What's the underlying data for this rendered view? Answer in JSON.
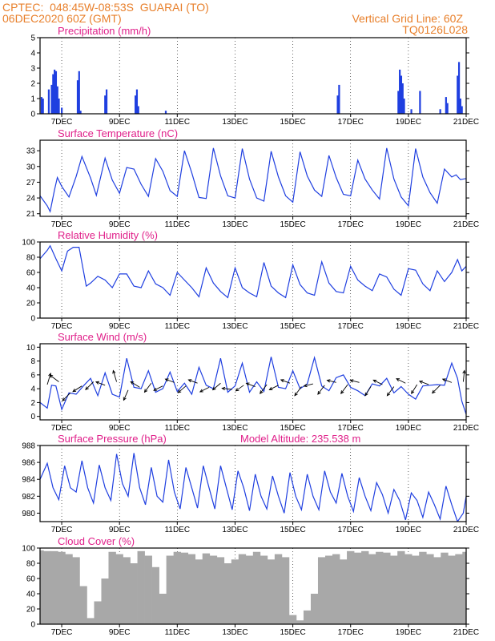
{
  "header": {
    "source": "CPTEC:",
    "coords": "048:45W-08:53S",
    "location": "GUARAI (TO)",
    "run": "06DEC2020 60Z (GMT)",
    "grid_note": "Vertical Grid Line: 60Z",
    "model": "TQ0126L028"
  },
  "colors": {
    "line": "#1f3fe0",
    "title": "#e0208a",
    "header": "#e87f2a",
    "cloud": "#a8a8a8",
    "wind_arrow": "#000000"
  },
  "x_axis": {
    "start": 6.25,
    "end": 21,
    "ticks": [
      7,
      9,
      11,
      13,
      15,
      17,
      19,
      21
    ],
    "tick_labels": [
      "7DEC",
      "9DEC",
      "11DEC",
      "13DEC",
      "15DEC",
      "17DEC",
      "19DEC",
      "21DEC"
    ]
  },
  "chart_data": [
    {
      "type": "bar",
      "title": "Precipitation (mm/h)",
      "ylim": [
        0,
        5
      ],
      "yticks": [
        0,
        1,
        2,
        3,
        4,
        5
      ],
      "x": [
        6.3,
        6.35,
        6.55,
        6.65,
        6.7,
        6.75,
        6.8,
        6.85,
        6.9,
        7.0,
        7.55,
        7.6,
        7.65,
        8.5,
        8.55,
        9.55,
        9.6,
        9.65,
        10.6,
        16.55,
        16.6,
        18.65,
        18.7,
        18.75,
        18.8,
        18.85,
        19.1,
        19.4,
        20.1,
        20.3,
        20.35,
        20.7,
        20.75,
        20.8,
        20.85
      ],
      "values": [
        1.1,
        1.0,
        1.6,
        1.9,
        2.6,
        2.9,
        2.8,
        1.8,
        1.0,
        0.4,
        2.2,
        2.8,
        0.2,
        1.2,
        1.6,
        1.2,
        1.6,
        0.5,
        0.2,
        1.2,
        1.9,
        1.5,
        2.9,
        2.5,
        2.0,
        1.0,
        0.3,
        1.5,
        0.3,
        1.1,
        0.7,
        2.5,
        3.4,
        1.0,
        0.5
      ]
    },
    {
      "type": "line",
      "title": "Surface Temperature (nC)",
      "ylim": [
        20.5,
        35
      ],
      "yticks": [
        21,
        24,
        27,
        30,
        33
      ],
      "x": [
        6.25,
        6.5,
        6.6,
        6.75,
        6.85,
        7.0,
        7.25,
        7.5,
        7.7,
        8.0,
        8.2,
        8.5,
        8.75,
        9.0,
        9.25,
        9.5,
        9.75,
        10.0,
        10.25,
        10.5,
        10.75,
        11.0,
        11.25,
        11.5,
        11.75,
        12.0,
        12.25,
        12.5,
        12.75,
        13.0,
        13.25,
        13.5,
        13.75,
        14.0,
        14.25,
        14.5,
        14.75,
        15.0,
        15.25,
        15.5,
        15.75,
        16.0,
        16.25,
        16.5,
        16.75,
        17.0,
        17.25,
        17.5,
        17.75,
        18.0,
        18.25,
        18.5,
        18.75,
        19.0,
        19.25,
        19.5,
        19.75,
        20.0,
        20.25,
        20.5,
        20.65,
        20.8,
        21.0
      ],
      "values": [
        24.4,
        22.5,
        21.4,
        25.5,
        27.9,
        26.2,
        24.2,
        28.1,
        31.9,
        27.8,
        24.5,
        31.6,
        27.4,
        24.9,
        29.8,
        29.5,
        26.6,
        24.3,
        31.5,
        29.1,
        25.4,
        24.3,
        33.0,
        28.8,
        24.1,
        23.9,
        33.5,
        28.2,
        24.4,
        24.0,
        33.4,
        27.6,
        24.0,
        23.4,
        32.9,
        28.0,
        24.4,
        23.2,
        32.8,
        28.2,
        25.5,
        24.3,
        32.1,
        27.9,
        24.7,
        24.4,
        31.2,
        27.6,
        25.5,
        23.8,
        33.5,
        27.6,
        24.2,
        22.5,
        33.4,
        28.0,
        25.0,
        23.0,
        29.5,
        28.0,
        28.4,
        27.5,
        27.7
      ]
    },
    {
      "type": "line",
      "title": "Relative Humidity (%)",
      "ylim": [
        0,
        100
      ],
      "yticks": [
        0,
        20,
        40,
        60,
        80,
        100
      ],
      "x": [
        6.25,
        6.5,
        6.6,
        6.8,
        7.0,
        7.2,
        7.4,
        7.6,
        7.85,
        8.0,
        8.25,
        8.5,
        8.75,
        9.0,
        9.25,
        9.5,
        9.75,
        10.0,
        10.25,
        10.5,
        10.75,
        11.0,
        11.25,
        11.5,
        11.75,
        12.0,
        12.25,
        12.5,
        12.75,
        13.0,
        13.25,
        13.5,
        13.75,
        14.0,
        14.25,
        14.5,
        14.75,
        15.0,
        15.25,
        15.5,
        15.75,
        16.0,
        16.25,
        16.5,
        16.75,
        17.0,
        17.25,
        17.5,
        17.75,
        18.0,
        18.25,
        18.5,
        18.75,
        19.0,
        19.25,
        19.5,
        19.75,
        20.0,
        20.25,
        20.5,
        20.7,
        20.85,
        21.0
      ],
      "values": [
        78,
        89,
        95,
        78,
        62,
        88,
        93,
        93,
        42,
        46,
        55,
        50,
        40,
        58,
        58,
        42,
        40,
        62,
        45,
        40,
        30,
        60,
        50,
        40,
        28,
        66,
        46,
        35,
        27,
        66,
        40,
        33,
        28,
        73,
        42,
        33,
        27,
        70,
        44,
        33,
        30,
        74,
        46,
        35,
        33,
        68,
        50,
        42,
        36,
        58,
        54,
        38,
        30,
        65,
        63,
        45,
        36,
        62,
        48,
        60,
        77,
        62,
        68
      ]
    },
    {
      "type": "line",
      "title": "Surface Wind (m/s)",
      "ylim": [
        -0.5,
        10.5
      ],
      "yticks": [
        0,
        2,
        4,
        6,
        8,
        10
      ],
      "x": [
        6.25,
        6.5,
        6.65,
        6.8,
        7.0,
        7.25,
        7.5,
        7.75,
        8.0,
        8.25,
        8.5,
        8.75,
        9.0,
        9.25,
        9.5,
        9.75,
        10.0,
        10.25,
        10.5,
        10.75,
        11.0,
        11.25,
        11.5,
        11.75,
        12.0,
        12.25,
        12.5,
        12.75,
        13.0,
        13.25,
        13.5,
        13.75,
        14.0,
        14.25,
        14.5,
        14.75,
        15.0,
        15.25,
        15.5,
        15.75,
        16.0,
        16.25,
        16.5,
        16.75,
        17.0,
        17.25,
        17.5,
        17.75,
        18.0,
        18.25,
        18.5,
        18.75,
        19.0,
        19.25,
        19.5,
        19.75,
        20.0,
        20.25,
        20.5,
        20.7,
        20.85,
        21.0
      ],
      "values": [
        2.0,
        1.2,
        4.5,
        4.4,
        1.0,
        3.4,
        3.2,
        4.4,
        5.5,
        3.0,
        6.3,
        3.2,
        2.8,
        8.4,
        4.2,
        4.0,
        6.6,
        3.5,
        4.0,
        6.4,
        3.6,
        4.8,
        3.2,
        7.1,
        4.5,
        4.0,
        8.4,
        3.5,
        4.4,
        7.7,
        3.5,
        5.0,
        3.6,
        8.6,
        4.2,
        4.0,
        6.6,
        4.0,
        4.7,
        8.5,
        4.4,
        3.7,
        5.6,
        6.0,
        4.2,
        3.7,
        3.0,
        4.7,
        4.4,
        5.5,
        3.4,
        4.3,
        3.2,
        2.5,
        4.4,
        4.5,
        4.6,
        4.5,
        7.7,
        5.5,
        2.2,
        0.3
      ],
      "arrows": [
        {
          "x": 6.5,
          "y": 4.6,
          "u": 0.3,
          "v": 1.0
        },
        {
          "x": 6.9,
          "y": 5.0,
          "u": -0.8,
          "v": 0.6
        },
        {
          "x": 7.3,
          "y": 3.4,
          "u": -0.7,
          "v": -0.7
        },
        {
          "x": 7.7,
          "y": 4.4,
          "u": -0.8,
          "v": -0.5
        },
        {
          "x": 8.1,
          "y": 5.0,
          "u": -0.7,
          "v": -0.7
        },
        {
          "x": 8.5,
          "y": 4.5,
          "u": -0.8,
          "v": 0.3
        },
        {
          "x": 8.9,
          "y": 5.0,
          "u": -0.3,
          "v": 1.0
        },
        {
          "x": 9.3,
          "y": 3.8,
          "u": -0.4,
          "v": -0.9
        },
        {
          "x": 9.7,
          "y": 4.2,
          "u": -0.8,
          "v": 0.5
        },
        {
          "x": 10.1,
          "y": 4.8,
          "u": -0.6,
          "v": -0.8
        },
        {
          "x": 10.5,
          "y": 4.4,
          "u": -0.8,
          "v": -0.4
        },
        {
          "x": 10.9,
          "y": 4.9,
          "u": -0.8,
          "v": 0.3
        },
        {
          "x": 11.3,
          "y": 4.4,
          "u": -0.7,
          "v": -0.6
        },
        {
          "x": 11.7,
          "y": 4.8,
          "u": -0.8,
          "v": 0.3
        },
        {
          "x": 12.1,
          "y": 4.2,
          "u": -0.8,
          "v": -0.4
        },
        {
          "x": 12.5,
          "y": 4.8,
          "u": -0.7,
          "v": -0.6
        },
        {
          "x": 12.9,
          "y": 3.9,
          "u": -0.9,
          "v": 0.1
        },
        {
          "x": 13.3,
          "y": 4.5,
          "u": -0.7,
          "v": -0.5
        },
        {
          "x": 13.7,
          "y": 4.3,
          "u": -0.8,
          "v": 0.3
        },
        {
          "x": 14.1,
          "y": 4.6,
          "u": -0.6,
          "v": -0.8
        },
        {
          "x": 14.5,
          "y": 4.5,
          "u": -0.8,
          "v": -0.4
        },
        {
          "x": 14.9,
          "y": 4.8,
          "u": -0.8,
          "v": 0.3
        },
        {
          "x": 15.3,
          "y": 4.3,
          "u": -0.6,
          "v": -0.8
        },
        {
          "x": 15.7,
          "y": 4.7,
          "u": -0.8,
          "v": -0.2
        },
        {
          "x": 16.1,
          "y": 4.5,
          "u": -0.6,
          "v": -0.8
        },
        {
          "x": 16.5,
          "y": 4.9,
          "u": -0.8,
          "v": 0.2
        },
        {
          "x": 16.9,
          "y": 4.6,
          "u": -0.6,
          "v": -0.8
        },
        {
          "x": 17.3,
          "y": 4.9,
          "u": -0.8,
          "v": 0.2
        },
        {
          "x": 17.7,
          "y": 4.3,
          "u": -0.5,
          "v": -0.8
        },
        {
          "x": 18.1,
          "y": 4.6,
          "u": -0.8,
          "v": 0.4
        },
        {
          "x": 18.5,
          "y": 4.3,
          "u": -0.6,
          "v": -0.8
        },
        {
          "x": 18.9,
          "y": 4.8,
          "u": -0.8,
          "v": 0.4
        },
        {
          "x": 19.3,
          "y": 4.6,
          "u": -0.5,
          "v": -0.8
        },
        {
          "x": 19.7,
          "y": 4.6,
          "u": -0.8,
          "v": 0.3
        },
        {
          "x": 20.1,
          "y": 4.5,
          "u": -0.7,
          "v": -0.7
        },
        {
          "x": 20.5,
          "y": 4.9,
          "u": -0.8,
          "v": 0.3
        },
        {
          "x": 20.9,
          "y": 5.0,
          "u": 0.1,
          "v": 1.0
        }
      ]
    },
    {
      "type": "line",
      "title": "Surface Pressure (hPa)",
      "subtitle": "Model Altitude: 235.538 m",
      "ylim": [
        979,
        988
      ],
      "yticks": [
        980,
        982,
        984,
        986,
        988
      ],
      "x": [
        6.25,
        6.5,
        6.7,
        6.9,
        7.1,
        7.3,
        7.5,
        7.7,
        7.9,
        8.1,
        8.3,
        8.5,
        8.7,
        8.9,
        9.1,
        9.3,
        9.5,
        9.7,
        9.9,
        10.1,
        10.3,
        10.5,
        10.7,
        10.9,
        11.1,
        11.3,
        11.5,
        11.7,
        11.9,
        12.1,
        12.3,
        12.5,
        12.7,
        12.9,
        13.1,
        13.3,
        13.5,
        13.7,
        13.9,
        14.1,
        14.3,
        14.5,
        14.7,
        14.9,
        15.1,
        15.3,
        15.5,
        15.7,
        15.9,
        16.1,
        16.3,
        16.5,
        16.7,
        16.9,
        17.1,
        17.3,
        17.5,
        17.7,
        17.9,
        18.1,
        18.3,
        18.5,
        18.7,
        18.9,
        19.1,
        19.3,
        19.5,
        19.7,
        19.9,
        20.1,
        20.3,
        20.5,
        20.7,
        20.9,
        21.0
      ],
      "values": [
        984.0,
        985.9,
        983.0,
        981.6,
        985.6,
        983.0,
        982.5,
        986.2,
        983.0,
        981.2,
        985.7,
        983.0,
        981.5,
        987.0,
        983.5,
        982.0,
        987.1,
        983.0,
        981.0,
        985.4,
        982.0,
        981.3,
        986.3,
        982.5,
        980.5,
        985.4,
        983.0,
        980.6,
        985.6,
        983.0,
        980.5,
        985.6,
        983.0,
        980.4,
        985.0,
        983.0,
        980.3,
        984.6,
        982.0,
        980.5,
        984.4,
        982.0,
        980.0,
        984.8,
        982.0,
        980.4,
        984.6,
        982.0,
        980.4,
        985.0,
        982.5,
        981.2,
        984.7,
        982.0,
        980.2,
        984.2,
        982.0,
        980.3,
        983.6,
        982.2,
        980.0,
        982.8,
        981.5,
        979.2,
        982.4,
        981.5,
        979.5,
        982.5,
        981.0,
        979.3,
        983.2,
        981.0,
        979.0,
        980.0,
        982.0
      ]
    },
    {
      "type": "bar",
      "title": "Cloud Cover (%)",
      "ylim": [
        0,
        100
      ],
      "yticks": [
        0,
        20,
        40,
        60,
        80,
        100
      ],
      "x": [
        6.25,
        6.5,
        6.75,
        7.0,
        7.25,
        7.5,
        7.75,
        8.0,
        8.25,
        8.5,
        8.75,
        9.0,
        9.25,
        9.5,
        9.75,
        10.0,
        10.25,
        10.5,
        10.75,
        11.0,
        11.25,
        11.5,
        11.75,
        12.0,
        12.25,
        12.5,
        12.75,
        13.0,
        13.25,
        13.5,
        13.75,
        14.0,
        14.25,
        14.5,
        14.75,
        15.0,
        15.25,
        15.5,
        15.75,
        16.0,
        16.25,
        16.5,
        16.75,
        17.0,
        17.25,
        17.5,
        17.75,
        18.0,
        18.25,
        18.5,
        18.75,
        19.0,
        19.25,
        19.5,
        19.75,
        20.0,
        20.25,
        20.5,
        20.75,
        21.0
      ],
      "values": [
        97,
        96,
        96,
        95,
        92,
        88,
        50,
        8,
        30,
        60,
        95,
        92,
        88,
        80,
        96,
        90,
        75,
        40,
        90,
        95,
        94,
        92,
        85,
        93,
        90,
        88,
        80,
        85,
        92,
        90,
        95,
        90,
        85,
        92,
        88,
        12,
        5,
        18,
        40,
        88,
        90,
        92,
        85,
        96,
        94,
        96,
        92,
        95,
        94,
        90,
        96,
        92,
        90,
        95,
        92,
        88,
        94,
        90,
        92,
        95
      ]
    }
  ]
}
